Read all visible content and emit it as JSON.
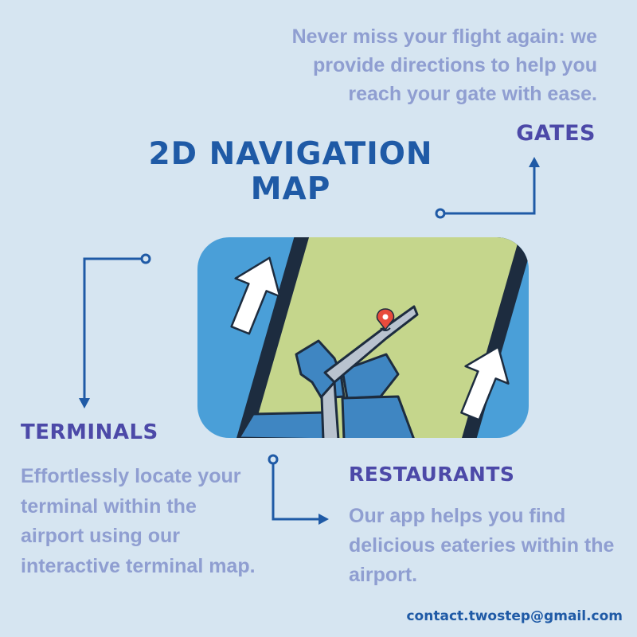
{
  "title": {
    "line1": "2D NAVIGATION",
    "line2": "MAP"
  },
  "sections": {
    "gates": {
      "heading": "GATES",
      "description": "Never miss your flight again:  we provide directions to help you reach your gate with ease."
    },
    "terminals": {
      "heading": "TERMINALS",
      "description": "Effortlessly locate your terminal within the airport using our interactive terminal map."
    },
    "restaurants": {
      "heading": "RESTAURANTS",
      "description": "Our app helps you find delicious eateries within the airport."
    }
  },
  "contact": "contact.twostep@gmail.com",
  "icons": [
    "phone-illustration",
    "map-pin-icon",
    "up-arrow-icon",
    "connector-arrow-icon"
  ],
  "colors": {
    "background": "#d6e5f1",
    "title": "#1f5aa6",
    "heading": "#4c49a8",
    "body_text": "#8f9ed1",
    "card_blue": "#4a9fd8",
    "map_green": "#c5d68c",
    "connector": "#1f5aa6"
  }
}
